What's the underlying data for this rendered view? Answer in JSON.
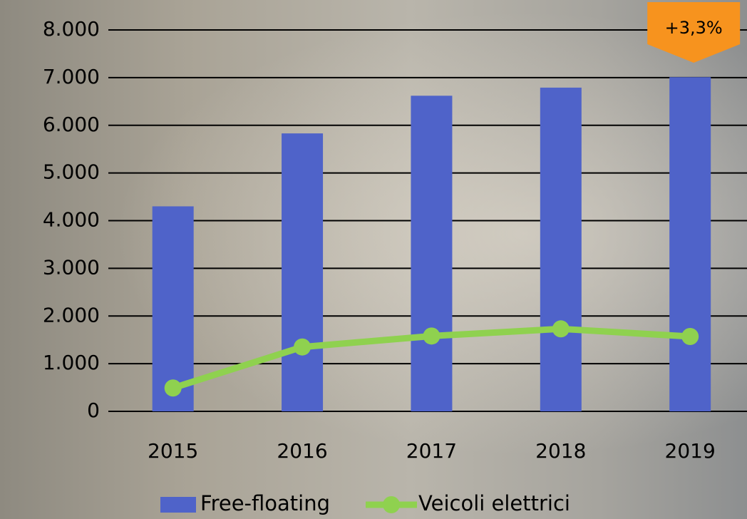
{
  "chart_data": {
    "type": "bar",
    "categories": [
      "2015",
      "2016",
      "2017",
      "2018",
      "2019"
    ],
    "series": [
      {
        "name": "Free-floating",
        "type": "bar",
        "color": "#4f63c9",
        "values": [
          4300,
          5830,
          6620,
          6790,
          7010
        ]
      },
      {
        "name": "Veicoli elettrici",
        "type": "line",
        "color": "#8fd14f",
        "values": [
          490,
          1350,
          1580,
          1730,
          1570
        ]
      }
    ],
    "ylim": [
      0,
      8000
    ],
    "yticks": [
      0,
      {
        "value": 1000,
        "label": "1.000"
      },
      {
        "value": 2000,
        "label": "2.000"
      },
      {
        "value": 3000,
        "label": "3.000"
      },
      {
        "value": 4000,
        "label": "4.000"
      },
      {
        "value": 5000,
        "label": "5.000"
      },
      {
        "value": 6000,
        "label": "6.000"
      },
      {
        "value": 7000,
        "label": "7.000"
      },
      {
        "value": 8000,
        "label": "8.000"
      }
    ],
    "grid": true,
    "legend": "bottom",
    "annotations": [
      {
        "text": "+3,3%",
        "color": "#f7931e"
      }
    ]
  }
}
